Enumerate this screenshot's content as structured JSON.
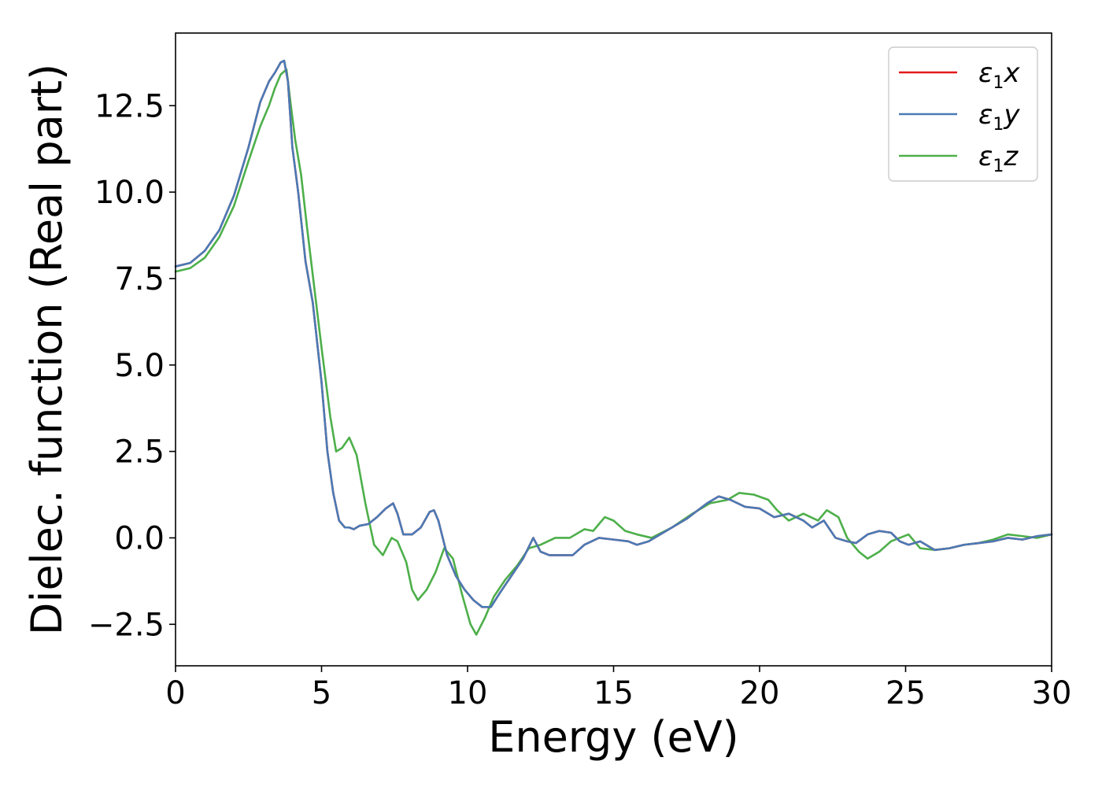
{
  "chart_data": {
    "type": "line",
    "title": "",
    "xlabel": "Energy (eV)",
    "ylabel": "Dielec. function (Real part)",
    "xlim": [
      0,
      30
    ],
    "ylim": [
      -3.7,
      14.6
    ],
    "xticks": [
      0,
      5,
      10,
      15,
      20,
      25,
      30
    ],
    "xtick_labels": [
      "0",
      "5",
      "10",
      "15",
      "20",
      "25",
      "30"
    ],
    "yticks": [
      -2.5,
      0.0,
      2.5,
      5.0,
      7.5,
      10.0,
      12.5
    ],
    "ytick_labels": [
      "−2.5",
      "0.0",
      "2.5",
      "5.0",
      "7.5",
      "10.0",
      "12.5"
    ],
    "grid": false,
    "legend_position": "top-right",
    "series": [
      {
        "name": "ε₁x",
        "legend_symbol": "ε",
        "legend_sub": "1",
        "legend_var": "x",
        "color": "#e41a1c",
        "x": [
          0,
          0.5,
          1,
          1.5,
          2,
          2.5,
          2.9,
          3.2,
          3.4,
          3.6,
          3.72,
          3.85,
          4.0,
          4.2,
          4.45,
          4.7,
          5.0,
          5.2,
          5.4,
          5.6,
          5.8,
          5.95,
          6.1,
          6.3,
          6.6,
          6.9,
          7.2,
          7.45,
          7.6,
          7.8,
          8.1,
          8.4,
          8.7,
          8.85,
          9.0,
          9.3,
          9.6,
          9.9,
          10.2,
          10.5,
          10.8,
          11.1,
          11.5,
          11.9,
          12.25,
          12.5,
          12.8,
          13.2,
          13.6,
          14.0,
          14.5,
          15.0,
          15.5,
          15.8,
          16.2,
          16.8,
          17.5,
          18.2,
          18.6,
          19.0,
          19.5,
          20.0,
          20.5,
          21.0,
          21.5,
          21.8,
          22.2,
          22.6,
          23.0,
          23.3,
          23.7,
          24.1,
          24.5,
          24.8,
          25.1,
          25.5,
          26.0,
          26.5,
          27.0,
          27.5,
          28.0,
          28.5,
          29.0,
          29.5,
          30.0
        ],
        "y": [
          7.85,
          7.95,
          8.3,
          8.9,
          9.9,
          11.3,
          12.6,
          13.2,
          13.45,
          13.75,
          13.8,
          13.2,
          11.3,
          10.0,
          8.0,
          6.8,
          4.5,
          2.5,
          1.3,
          0.5,
          0.3,
          0.3,
          0.25,
          0.35,
          0.4,
          0.6,
          0.85,
          1.0,
          0.7,
          0.1,
          0.1,
          0.3,
          0.75,
          0.8,
          0.5,
          -0.5,
          -1.1,
          -1.5,
          -1.8,
          -2.0,
          -2.0,
          -1.6,
          -1.1,
          -0.6,
          0.0,
          -0.4,
          -0.5,
          -0.5,
          -0.5,
          -0.2,
          0.0,
          -0.05,
          -0.1,
          -0.2,
          -0.1,
          0.2,
          0.55,
          1.0,
          1.2,
          1.1,
          0.9,
          0.85,
          0.6,
          0.7,
          0.5,
          0.3,
          0.5,
          0.0,
          -0.1,
          -0.15,
          0.1,
          0.2,
          0.15,
          -0.1,
          -0.2,
          -0.1,
          -0.35,
          -0.3,
          -0.2,
          -0.15,
          -0.1,
          0.0,
          -0.05,
          0.05,
          0.1
        ]
      },
      {
        "name": "ε₁y",
        "legend_symbol": "ε",
        "legend_sub": "1",
        "legend_var": "y",
        "color": "#4a7ab5",
        "x": [
          0,
          0.5,
          1,
          1.5,
          2,
          2.5,
          2.9,
          3.2,
          3.4,
          3.6,
          3.72,
          3.85,
          4.0,
          4.2,
          4.45,
          4.7,
          5.0,
          5.2,
          5.4,
          5.6,
          5.8,
          5.95,
          6.1,
          6.3,
          6.6,
          6.9,
          7.2,
          7.45,
          7.6,
          7.8,
          8.1,
          8.4,
          8.7,
          8.85,
          9.0,
          9.3,
          9.6,
          9.9,
          10.2,
          10.5,
          10.8,
          11.1,
          11.5,
          11.9,
          12.25,
          12.5,
          12.8,
          13.2,
          13.6,
          14.0,
          14.5,
          15.0,
          15.5,
          15.8,
          16.2,
          16.8,
          17.5,
          18.2,
          18.6,
          19.0,
          19.5,
          20.0,
          20.5,
          21.0,
          21.5,
          21.8,
          22.2,
          22.6,
          23.0,
          23.3,
          23.7,
          24.1,
          24.5,
          24.8,
          25.1,
          25.5,
          26.0,
          26.5,
          27.0,
          27.5,
          28.0,
          28.5,
          29.0,
          29.5,
          30.0
        ],
        "y": [
          7.85,
          7.95,
          8.3,
          8.9,
          9.9,
          11.3,
          12.6,
          13.2,
          13.45,
          13.75,
          13.8,
          13.2,
          11.3,
          10.0,
          8.0,
          6.8,
          4.5,
          2.5,
          1.3,
          0.5,
          0.3,
          0.3,
          0.25,
          0.35,
          0.4,
          0.6,
          0.85,
          1.0,
          0.7,
          0.1,
          0.1,
          0.3,
          0.75,
          0.8,
          0.5,
          -0.5,
          -1.1,
          -1.5,
          -1.8,
          -2.0,
          -2.0,
          -1.6,
          -1.1,
          -0.6,
          0.0,
          -0.4,
          -0.5,
          -0.5,
          -0.5,
          -0.2,
          0.0,
          -0.05,
          -0.1,
          -0.2,
          -0.1,
          0.2,
          0.55,
          1.0,
          1.2,
          1.1,
          0.9,
          0.85,
          0.6,
          0.7,
          0.5,
          0.3,
          0.5,
          0.0,
          -0.1,
          -0.15,
          0.1,
          0.2,
          0.15,
          -0.1,
          -0.2,
          -0.1,
          -0.35,
          -0.3,
          -0.2,
          -0.15,
          -0.1,
          0.0,
          -0.05,
          0.05,
          0.1
        ]
      },
      {
        "name": "ε₁z",
        "legend_symbol": "ε",
        "legend_sub": "1",
        "legend_var": "z",
        "color": "#4daf4a",
        "x": [
          0,
          0.5,
          1,
          1.5,
          2,
          2.5,
          2.9,
          3.2,
          3.4,
          3.6,
          3.8,
          3.95,
          4.1,
          4.3,
          4.5,
          4.7,
          5.0,
          5.3,
          5.5,
          5.7,
          5.95,
          6.2,
          6.5,
          6.8,
          7.1,
          7.4,
          7.6,
          7.9,
          8.1,
          8.3,
          8.6,
          8.9,
          9.2,
          9.5,
          9.8,
          10.1,
          10.3,
          10.6,
          10.9,
          11.3,
          11.7,
          12.1,
          12.5,
          13.0,
          13.5,
          14.0,
          14.3,
          14.7,
          15.0,
          15.4,
          15.8,
          16.3,
          17.0,
          17.7,
          18.3,
          18.9,
          19.3,
          19.8,
          20.3,
          20.6,
          21.0,
          21.5,
          22.0,
          22.3,
          22.7,
          23.0,
          23.4,
          23.7,
          24.1,
          24.5,
          24.8,
          25.1,
          25.5,
          26.0,
          26.5,
          27.0,
          27.5,
          28.0,
          28.5,
          29.0,
          29.5,
          30.0
        ],
        "y": [
          7.7,
          7.8,
          8.1,
          8.7,
          9.6,
          10.9,
          11.9,
          12.5,
          13.0,
          13.4,
          13.55,
          12.5,
          11.5,
          10.5,
          9.0,
          7.6,
          5.5,
          3.5,
          2.5,
          2.6,
          2.9,
          2.4,
          1.0,
          -0.2,
          -0.5,
          0.0,
          -0.1,
          -0.7,
          -1.5,
          -1.8,
          -1.5,
          -1.0,
          -0.3,
          -0.6,
          -1.6,
          -2.5,
          -2.8,
          -2.3,
          -1.7,
          -1.2,
          -0.8,
          -0.3,
          -0.2,
          0.0,
          0.0,
          0.25,
          0.2,
          0.6,
          0.5,
          0.2,
          0.1,
          0.0,
          0.3,
          0.7,
          1.0,
          1.1,
          1.3,
          1.25,
          1.1,
          0.8,
          0.5,
          0.7,
          0.5,
          0.8,
          0.6,
          0.0,
          -0.4,
          -0.6,
          -0.4,
          -0.1,
          0.0,
          0.1,
          -0.3,
          -0.35,
          -0.3,
          -0.2,
          -0.15,
          -0.05,
          0.1,
          0.05,
          0.0,
          0.1
        ]
      }
    ]
  }
}
